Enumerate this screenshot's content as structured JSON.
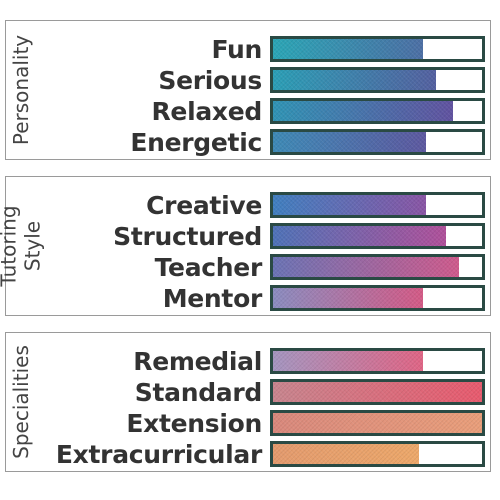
{
  "panels": [
    {
      "title_lines": [
        "Personality"
      ],
      "items": [
        {
          "label": "Fun",
          "value": 0.72,
          "colors": [
            "#2aa6b6",
            "#4c6fa5"
          ]
        },
        {
          "label": "Serious",
          "value": 0.78,
          "colors": [
            "#2a9fb6",
            "#5460a0"
          ]
        },
        {
          "label": "Relaxed",
          "value": 0.86,
          "colors": [
            "#2f94b5",
            "#6152a0"
          ]
        },
        {
          "label": "Energetic",
          "value": 0.73,
          "colors": [
            "#3d8ab6",
            "#5d58a0"
          ]
        }
      ]
    },
    {
      "title_lines": [
        "Tutoring",
        "Style"
      ],
      "items": [
        {
          "label": "Creative",
          "value": 0.73,
          "colors": [
            "#3f7fc0",
            "#8a55a5"
          ]
        },
        {
          "label": "Structured",
          "value": 0.83,
          "colors": [
            "#4e72b8",
            "#b0509a"
          ]
        },
        {
          "label": "Teacher",
          "value": 0.89,
          "colors": [
            "#6a73b5",
            "#cf5a8c"
          ]
        },
        {
          "label": "Mentor",
          "value": 0.72,
          "colors": [
            "#8a8cc0",
            "#d45a86"
          ]
        }
      ]
    },
    {
      "title_lines": [
        "Specialities"
      ],
      "items": [
        {
          "label": "Remedial",
          "value": 0.72,
          "colors": [
            "#a495c0",
            "#e06585"
          ]
        },
        {
          "label": "Standard",
          "value": 1.0,
          "colors": [
            "#c8858e",
            "#e85a6e"
          ]
        },
        {
          "label": "Extension",
          "value": 1.0,
          "colors": [
            "#d9887c",
            "#e99e7a"
          ]
        },
        {
          "label": "Extracurricular",
          "value": 0.7,
          "colors": [
            "#e39a6d",
            "#eda86a"
          ]
        }
      ]
    }
  ]
}
